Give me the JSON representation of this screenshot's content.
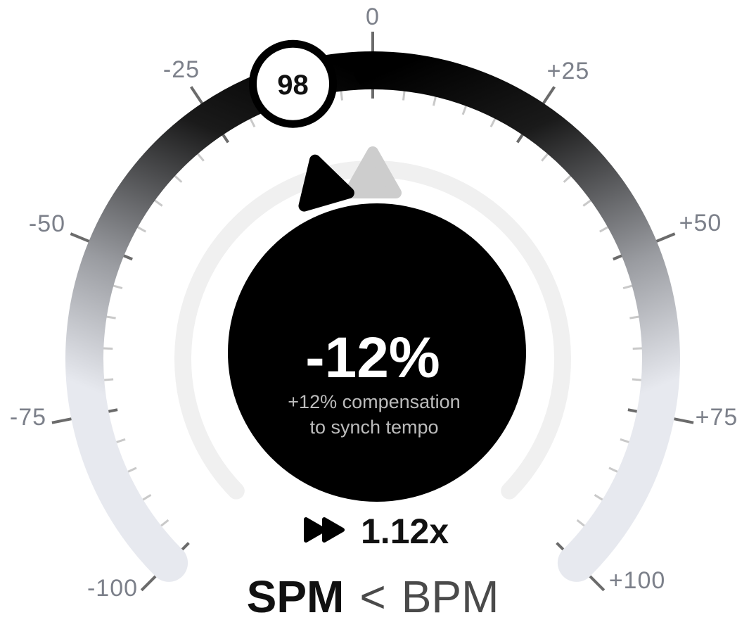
{
  "scale": {
    "min": -100,
    "max": 100,
    "major_step": 25,
    "minor_step": 5,
    "labels": [
      "-100",
      "-75",
      "-50",
      "-25",
      "0",
      "+25",
      "+50",
      "+75",
      "+100"
    ]
  },
  "knob": {
    "value": "98"
  },
  "markers": {
    "current_offset": -12,
    "target_offset": 0
  },
  "center": {
    "percent": "-12%",
    "line1": "+12% compensation",
    "line2": "to synch tempo"
  },
  "speed": {
    "icon": "fast-forward-icon",
    "value": "1.12x"
  },
  "comparison": {
    "left": "SPM",
    "operator": "<",
    "right": "BPM"
  },
  "colors": {
    "arc_start": "#000000",
    "arc_end": "#e7e9ef",
    "inner_track": "#f0f0f0",
    "center_disc": "#000000",
    "tick_major": "#6b6b6b",
    "tick_minor": "#c9c9c9",
    "target_marker": "#cdcdcd"
  }
}
